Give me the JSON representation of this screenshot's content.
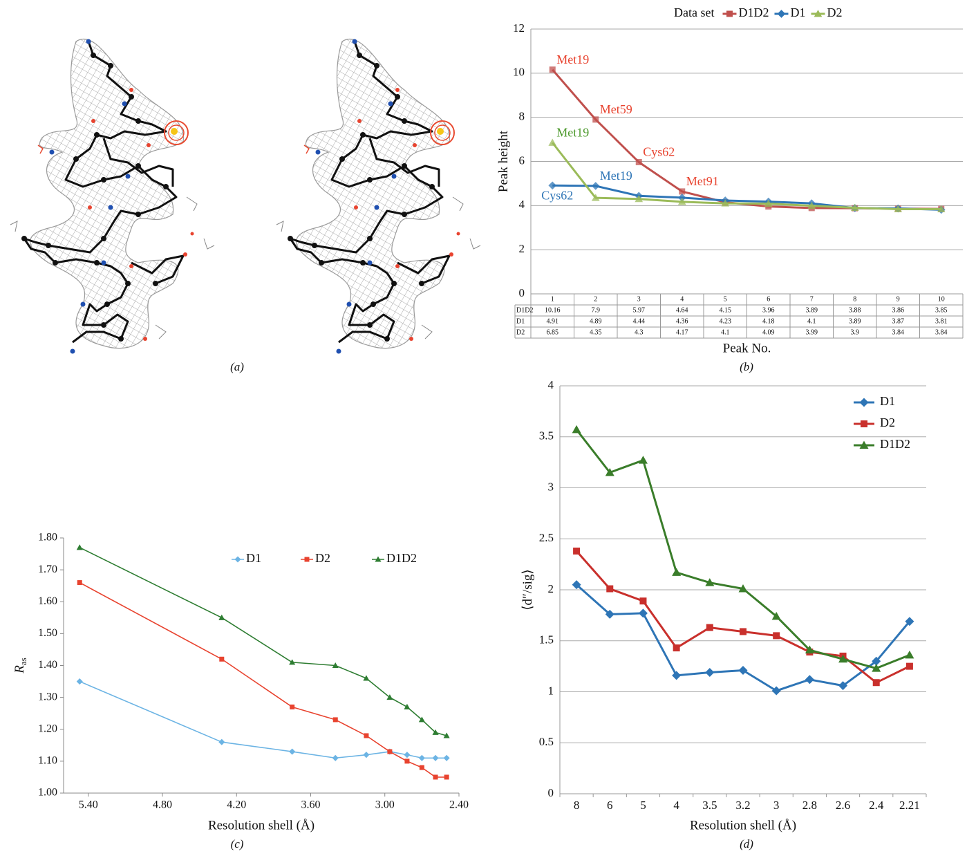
{
  "figure_a": {
    "caption": "(a)"
  },
  "chart_data": [
    {
      "type": "line",
      "caption": "(b)",
      "ylabel": "Peak height",
      "xlabel": "Peak No.",
      "legend_title": "Data set",
      "legend": "top",
      "categories": [
        "1",
        "2",
        "3",
        "4",
        "5",
        "6",
        "7",
        "8",
        "9",
        "10"
      ],
      "ylim": [
        0,
        12
      ],
      "yticks": [
        0,
        2,
        4,
        6,
        8,
        10,
        12
      ],
      "grid": true,
      "data_table": true,
      "series": [
        {
          "name": "D1D2",
          "color": "#c0504d",
          "marker": "square",
          "values": [
            10.16,
            7.9,
            5.97,
            4.64,
            4.15,
            3.96,
            3.89,
            3.88,
            3.86,
            3.85
          ],
          "point_labels": [
            "Met19",
            "Met59",
            "Cys62",
            "Met91",
            null,
            null,
            null,
            null,
            null,
            null
          ],
          "label_color": "#e8432f"
        },
        {
          "name": "D1",
          "color": "#2e75b6",
          "marker": "diamond",
          "values": [
            4.91,
            4.89,
            4.44,
            4.36,
            4.23,
            4.18,
            4.1,
            3.89,
            3.87,
            3.81
          ],
          "point_labels": [
            "Cys62",
            "Met19",
            null,
            null,
            null,
            null,
            null,
            null,
            null,
            null
          ],
          "label_color": "#2e75b6"
        },
        {
          "name": "D2",
          "color": "#9bbb59",
          "marker": "triangle",
          "values": [
            6.85,
            4.35,
            4.3,
            4.17,
            4.1,
            4.09,
            3.99,
            3.9,
            3.84,
            3.84
          ],
          "point_labels": [
            "Met19",
            null,
            null,
            null,
            null,
            null,
            null,
            null,
            null,
            null
          ],
          "label_color": "#4e9a2e"
        }
      ]
    },
    {
      "type": "scatter-line",
      "caption": "(c)",
      "ylabel": "R",
      "ylabel_sub": "as",
      "xlabel": "Resolution shell (Å)",
      "legend": "top",
      "x": [
        5.47,
        4.32,
        3.75,
        3.4,
        3.15,
        2.96,
        2.82,
        2.7,
        2.59,
        2.5
      ],
      "xlim": [
        5.6,
        2.4
      ],
      "xticks": [
        {
          "value": 5.4,
          "label": "5.40"
        },
        {
          "value": 4.8,
          "label": "4.80"
        },
        {
          "value": 4.2,
          "label": "4.20"
        },
        {
          "value": 3.6,
          "label": "3.60"
        },
        {
          "value": 3.0,
          "label": "3.00"
        },
        {
          "value": 2.4,
          "label": "2.40"
        }
      ],
      "ylim": [
        1.0,
        1.8
      ],
      "yticks": [
        {
          "value": 1.0,
          "label": "1.00"
        },
        {
          "value": 1.1,
          "label": "1.10"
        },
        {
          "value": 1.2,
          "label": "1.20"
        },
        {
          "value": 1.3,
          "label": "1.30"
        },
        {
          "value": 1.4,
          "label": "1.40"
        },
        {
          "value": 1.5,
          "label": "1.50"
        },
        {
          "value": 1.6,
          "label": "1.60"
        },
        {
          "value": 1.7,
          "label": "1.70"
        },
        {
          "value": 1.8,
          "label": "1.80"
        }
      ],
      "grid": false,
      "series": [
        {
          "name": "D1",
          "color": "#6cb4e4",
          "marker": "diamond",
          "values": [
            1.35,
            1.16,
            1.13,
            1.11,
            1.12,
            1.13,
            1.12,
            1.11,
            1.11,
            1.11
          ]
        },
        {
          "name": "D2",
          "color": "#e8432f",
          "marker": "square",
          "values": [
            1.66,
            1.42,
            1.27,
            1.23,
            1.18,
            1.13,
            1.1,
            1.08,
            1.05,
            1.05
          ]
        },
        {
          "name": "D1D2",
          "color": "#2e7d32",
          "marker": "triangle",
          "values": [
            1.77,
            1.55,
            1.41,
            1.4,
            1.36,
            1.3,
            1.27,
            1.23,
            1.19,
            1.18
          ]
        }
      ]
    },
    {
      "type": "line",
      "caption": "(d)",
      "ylabel": "⟨d″/sig⟩",
      "xlabel": "Resolution shell (Å)",
      "legend": "right",
      "categories": [
        "8",
        "6",
        "5",
        "4",
        "3.5",
        "3.2",
        "3",
        "2.8",
        "2.6",
        "2.4",
        "2.21"
      ],
      "ylim": [
        0,
        4
      ],
      "yticks": [
        0,
        0.5,
        1,
        1.5,
        2,
        2.5,
        3,
        3.5,
        4
      ],
      "grid": true,
      "series": [
        {
          "name": "D1",
          "color": "#2e75b6",
          "marker": "diamond",
          "values": [
            2.05,
            1.76,
            1.77,
            1.16,
            1.19,
            1.21,
            1.01,
            1.12,
            1.06,
            1.3,
            1.69
          ]
        },
        {
          "name": "D2",
          "color": "#c9302c",
          "marker": "square",
          "values": [
            2.38,
            2.01,
            1.89,
            1.43,
            1.63,
            1.59,
            1.55,
            1.39,
            1.35,
            1.09,
            1.25
          ]
        },
        {
          "name": "D1D2",
          "color": "#3a7d2a",
          "marker": "triangle",
          "values": [
            3.57,
            3.15,
            3.27,
            2.17,
            2.07,
            2.01,
            1.74,
            1.41,
            1.32,
            1.23,
            1.36
          ]
        }
      ]
    }
  ]
}
